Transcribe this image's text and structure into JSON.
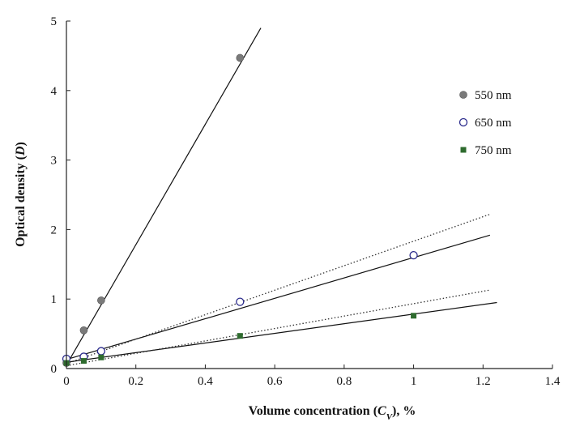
{
  "chart_data": {
    "type": "scatter",
    "title": "",
    "xlabel": "Volume concentration (Cᵥ), %",
    "xlabel_parts": {
      "pre": "Volume concentration (",
      "var": "C",
      "sub": "V",
      "post": "), %"
    },
    "ylabel": "Optical density (D)",
    "ylabel_parts": {
      "pre": "Optical density (",
      "var": "D",
      "post": ")"
    },
    "xlim": [
      0,
      1.4
    ],
    "ylim": [
      0,
      5
    ],
    "x_ticks": [
      0,
      0.2,
      0.4,
      0.6,
      0.8,
      1.0,
      1.2,
      1.4
    ],
    "x_tick_labels": [
      "0",
      "0.2",
      "0.4",
      "0.6",
      "0.8",
      "1",
      "1.2",
      "1.4"
    ],
    "y_ticks": [
      0,
      1,
      2,
      3,
      4,
      5
    ],
    "y_tick_labels": [
      "0",
      "1",
      "2",
      "3",
      "4",
      "5"
    ],
    "grid": false,
    "legend_position": "right",
    "series": [
      {
        "name": "550 nm",
        "marker": "filled-circle",
        "color": "#7a7a7a",
        "x": [
          0,
          0.05,
          0.1,
          0.5
        ],
        "y": [
          0.08,
          0.55,
          0.98,
          4.47
        ],
        "fit": {
          "style": "solid",
          "x0": 0,
          "y0": 0.05,
          "x1": 0.56,
          "y1": 4.9
        }
      },
      {
        "name": "650 nm",
        "marker": "open-circle",
        "color": "#2b2b8c",
        "x": [
          0,
          0.05,
          0.1,
          0.5,
          1.0
        ],
        "y": [
          0.14,
          0.17,
          0.25,
          0.96,
          1.63
        ],
        "fit": {
          "style": "solid",
          "x0": 0,
          "y0": 0.13,
          "x1": 1.22,
          "y1": 1.92
        },
        "fit_secondary": {
          "style": "dotted",
          "x0": 0,
          "y0": 0.07,
          "x1": 1.22,
          "y1": 2.22
        }
      },
      {
        "name": "750 nm",
        "marker": "filled-square",
        "color": "#2e6b2e",
        "x": [
          0,
          0.05,
          0.1,
          0.5,
          1.0
        ],
        "y": [
          0.08,
          0.11,
          0.16,
          0.47,
          0.76
        ],
        "fit": {
          "style": "solid",
          "x0": 0,
          "y0": 0.09,
          "x1": 1.24,
          "y1": 0.95
        },
        "fit_secondary": {
          "style": "dotted",
          "x0": 0,
          "y0": 0.04,
          "x1": 1.22,
          "y1": 1.13
        }
      }
    ]
  }
}
